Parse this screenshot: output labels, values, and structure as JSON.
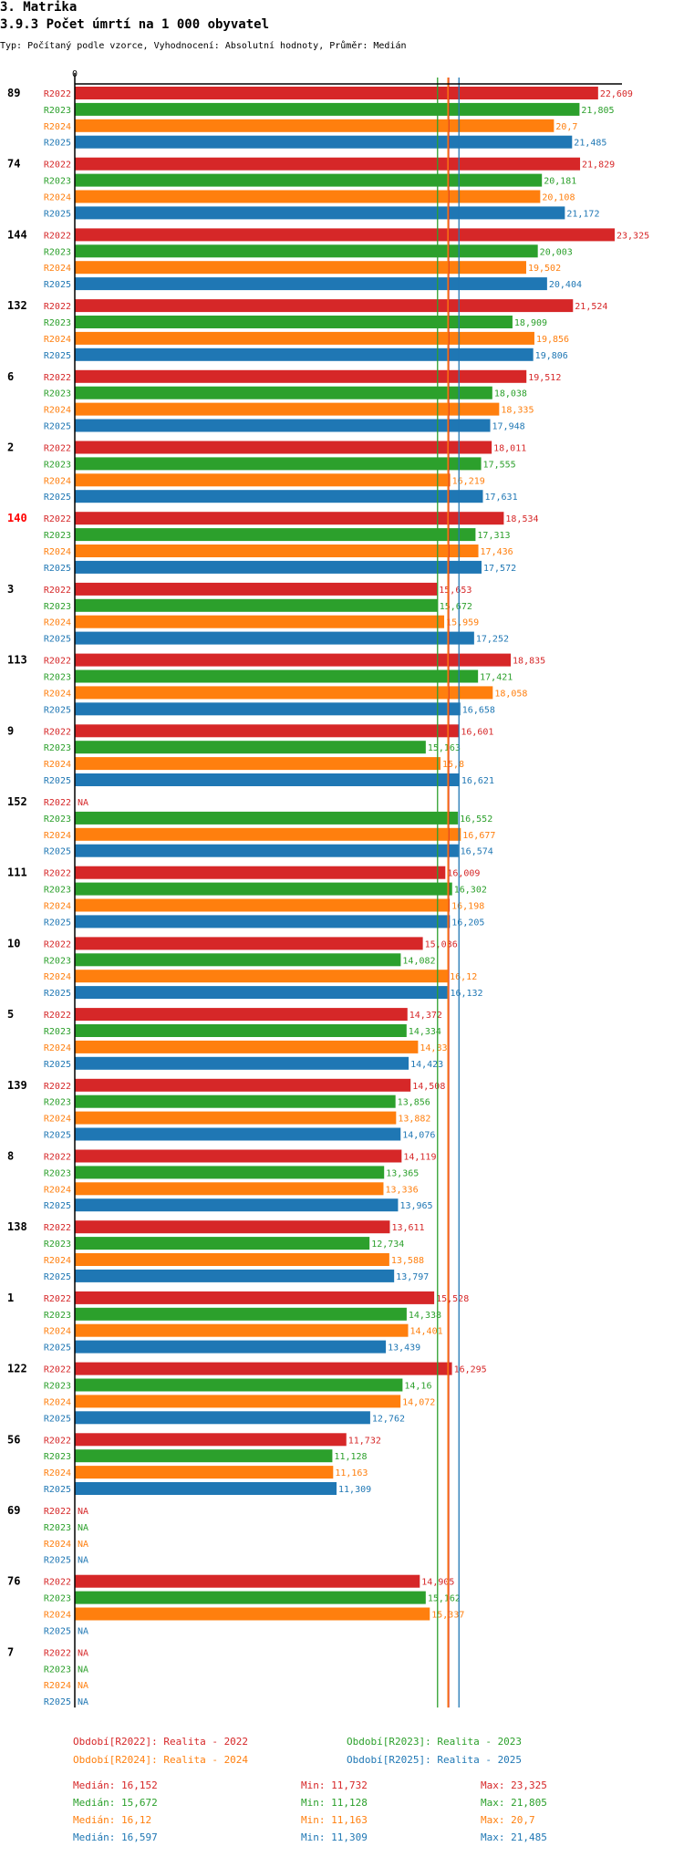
{
  "header": {
    "section": "3. Matrika",
    "title": "3.9.3 Počet úmrtí na 1 000 obyvatel",
    "subtitle": "Typ: Počítaný podle vzorce, Vyhodnocení: Absolutní hodnoty, Průměr: Medián"
  },
  "colors": {
    "R2022": "#d62728",
    "R2023": "#2ca02c",
    "R2024": "#ff7f0e",
    "R2025": "#1f77b4",
    "highlight": "#ff0000",
    "axis": "#000000"
  },
  "chart_data": {
    "type": "bar",
    "orientation": "horizontal",
    "axis_zero_label": "0",
    "xlim": [
      0,
      23.325
    ],
    "series_names": [
      "R2022",
      "R2023",
      "R2024",
      "R2025"
    ],
    "highlighted_group": "140",
    "groups": [
      {
        "id": "89",
        "values": [
          22.609,
          21.805,
          20.7,
          21.485
        ],
        "labels": [
          "22,609",
          "21,805",
          "20,7",
          "21,485"
        ]
      },
      {
        "id": "74",
        "values": [
          21.829,
          20.181,
          20.108,
          21.172
        ],
        "labels": [
          "21,829",
          "20,181",
          "20,108",
          "21,172"
        ]
      },
      {
        "id": "144",
        "values": [
          23.325,
          20.003,
          19.502,
          20.404
        ],
        "labels": [
          "23,325",
          "20,003",
          "19,502",
          "20,404"
        ]
      },
      {
        "id": "132",
        "values": [
          21.524,
          18.909,
          19.856,
          19.806
        ],
        "labels": [
          "21,524",
          "18,909",
          "19,856",
          "19,806"
        ]
      },
      {
        "id": "6",
        "values": [
          19.512,
          18.038,
          18.335,
          17.948
        ],
        "labels": [
          "19,512",
          "18,038",
          "18,335",
          "17,948"
        ]
      },
      {
        "id": "2",
        "values": [
          18.011,
          17.555,
          16.219,
          17.631
        ],
        "labels": [
          "18,011",
          "17,555",
          "16,219",
          "17,631"
        ]
      },
      {
        "id": "140",
        "values": [
          18.534,
          17.313,
          17.436,
          17.572
        ],
        "labels": [
          "18,534",
          "17,313",
          "17,436",
          "17,572"
        ]
      },
      {
        "id": "3",
        "values": [
          15.653,
          15.672,
          15.959,
          17.252
        ],
        "labels": [
          "15,653",
          "15,672",
          "15,959",
          "17,252"
        ]
      },
      {
        "id": "113",
        "values": [
          18.835,
          17.421,
          18.058,
          16.658
        ],
        "labels": [
          "18,835",
          "17,421",
          "18,058",
          "16,658"
        ]
      },
      {
        "id": "9",
        "values": [
          16.601,
          15.163,
          15.8,
          16.621
        ],
        "labels": [
          "16,601",
          "15,163",
          "15,8",
          "16,621"
        ]
      },
      {
        "id": "152",
        "values": [
          null,
          16.552,
          16.677,
          16.574
        ],
        "labels": [
          "NA",
          "16,552",
          "16,677",
          "16,574"
        ]
      },
      {
        "id": "111",
        "values": [
          16.009,
          16.302,
          16.198,
          16.205
        ],
        "labels": [
          "16,009",
          "16,302",
          "16,198",
          "16,205"
        ]
      },
      {
        "id": "10",
        "values": [
          15.036,
          14.082,
          16.12,
          16.132
        ],
        "labels": [
          "15,036",
          "14,082",
          "16,12",
          "16,132"
        ]
      },
      {
        "id": "5",
        "values": [
          14.372,
          14.334,
          14.83,
          14.423
        ],
        "labels": [
          "14,372",
          "14,334",
          "14,83",
          "14,423"
        ]
      },
      {
        "id": "139",
        "values": [
          14.508,
          13.856,
          13.882,
          14.076
        ],
        "labels": [
          "14,508",
          "13,856",
          "13,882",
          "14,076"
        ]
      },
      {
        "id": "8",
        "values": [
          14.119,
          13.365,
          13.336,
          13.965
        ],
        "labels": [
          "14,119",
          "13,365",
          "13,336",
          "13,965"
        ]
      },
      {
        "id": "138",
        "values": [
          13.611,
          12.734,
          13.588,
          13.797
        ],
        "labels": [
          "13,611",
          "12,734",
          "13,588",
          "13,797"
        ]
      },
      {
        "id": "1",
        "values": [
          15.528,
          14.338,
          14.401,
          13.439
        ],
        "labels": [
          "15,528",
          "14,338",
          "14,401",
          "13,439"
        ]
      },
      {
        "id": "122",
        "values": [
          16.295,
          14.16,
          14.072,
          12.762
        ],
        "labels": [
          "16,295",
          "14,16",
          "14,072",
          "12,762"
        ]
      },
      {
        "id": "56",
        "values": [
          11.732,
          11.128,
          11.163,
          11.309
        ],
        "labels": [
          "11,732",
          "11,128",
          "11,163",
          "11,309"
        ]
      },
      {
        "id": "69",
        "values": [
          null,
          null,
          null,
          null
        ],
        "labels": [
          "NA",
          "NA",
          "NA",
          "NA"
        ]
      },
      {
        "id": "76",
        "values": [
          14.905,
          15.162,
          15.337,
          null
        ],
        "labels": [
          "14,905",
          "15,162",
          "15,337",
          "NA"
        ]
      },
      {
        "id": "7",
        "values": [
          null,
          null,
          null,
          null
        ],
        "labels": [
          "NA",
          "NA",
          "NA",
          "NA"
        ]
      }
    ],
    "medians": {
      "R2022": 16.152,
      "R2023": 15.672,
      "R2024": 16.12,
      "R2025": 16.597
    },
    "legend": [
      {
        "key": "R2022",
        "text": "Období[R2022]: Realita - 2022"
      },
      {
        "key": "R2023",
        "text": "Období[R2023]: Realita - 2023"
      },
      {
        "key": "R2024",
        "text": "Období[R2024]: Realita - 2024"
      },
      {
        "key": "R2025",
        "text": "Období[R2025]: Realita - 2025"
      }
    ],
    "stats": [
      {
        "key": "R2022",
        "median": "Medián: 16,152",
        "min": "Min: 11,732",
        "max": "Max: 23,325"
      },
      {
        "key": "R2023",
        "median": "Medián: 15,672",
        "min": "Min: 11,128",
        "max": "Max: 21,805"
      },
      {
        "key": "R2024",
        "median": "Medián: 16,12",
        "min": "Min: 11,163",
        "max": "Max: 20,7"
      },
      {
        "key": "R2025",
        "median": "Medián: 16,597",
        "min": "Min: 11,309",
        "max": "Max: 21,485"
      }
    ]
  }
}
